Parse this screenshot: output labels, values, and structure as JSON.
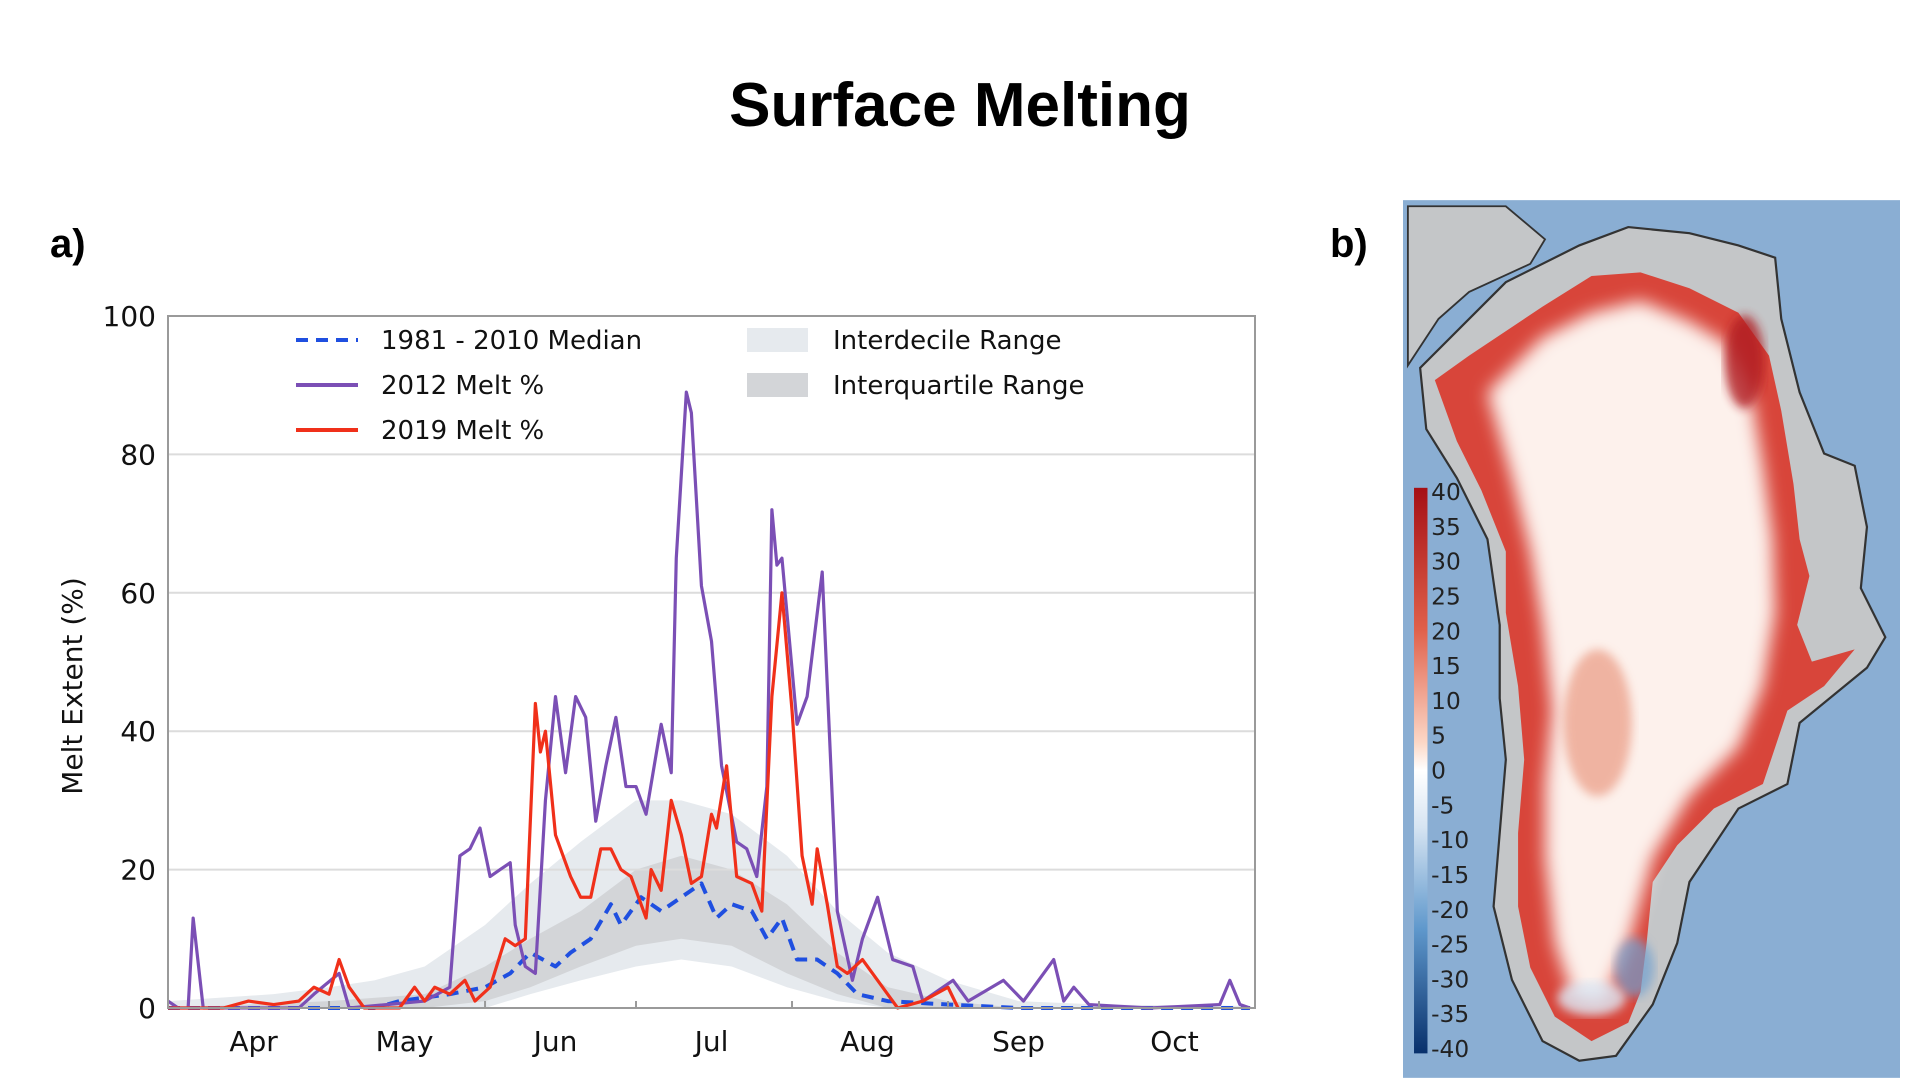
{
  "title": "Surface Melting",
  "panel_a_label": "a)",
  "panel_b_label": "b)",
  "chart_data": {
    "type": "line",
    "title": "",
    "xlabel": "",
    "ylabel": "Melt Extent (%)",
    "ylim": [
      0,
      100
    ],
    "xlim": [
      "03-30",
      "11-01"
    ],
    "yticks": [
      0,
      20,
      40,
      60,
      80,
      100
    ],
    "xtick_labels": [
      "Apr",
      "May",
      "Jun",
      "Jul",
      "Aug",
      "Sep",
      "Oct"
    ],
    "grid": "horizontal",
    "legend_placement": "top-left",
    "series": [
      {
        "name": "1981 - 2010 Median",
        "style": "dashed",
        "color": "#1f4fe0",
        "points": [
          [
            "03-30",
            0
          ],
          [
            "05-10",
            0
          ],
          [
            "05-15",
            1
          ],
          [
            "05-25",
            2
          ],
          [
            "06-01",
            3
          ],
          [
            "06-06",
            5
          ],
          [
            "06-10",
            8
          ],
          [
            "06-15",
            6
          ],
          [
            "06-18",
            8
          ],
          [
            "06-22",
            10
          ],
          [
            "06-26",
            15
          ],
          [
            "06-28",
            12
          ],
          [
            "07-02",
            16
          ],
          [
            "07-06",
            14
          ],
          [
            "07-10",
            16
          ],
          [
            "07-14",
            18
          ],
          [
            "07-17",
            13
          ],
          [
            "07-20",
            15
          ],
          [
            "07-24",
            14
          ],
          [
            "07-27",
            10
          ],
          [
            "07-30",
            13
          ],
          [
            "08-02",
            7
          ],
          [
            "08-06",
            7
          ],
          [
            "08-10",
            5
          ],
          [
            "08-14",
            2
          ],
          [
            "08-20",
            1
          ],
          [
            "09-01",
            0.5
          ],
          [
            "09-15",
            0
          ],
          [
            "10-31",
            0
          ]
        ]
      },
      {
        "name": "2012 Melt %",
        "style": "solid",
        "color": "#7b4fb5",
        "points": [
          [
            "03-30",
            1
          ],
          [
            "04-01",
            0
          ],
          [
            "04-03",
            0
          ],
          [
            "04-04",
            13
          ],
          [
            "04-06",
            0
          ],
          [
            "04-25",
            0
          ],
          [
            "04-28",
            2
          ],
          [
            "05-03",
            5
          ],
          [
            "05-05",
            0
          ],
          [
            "05-20",
            1
          ],
          [
            "05-25",
            3
          ],
          [
            "05-27",
            22
          ],
          [
            "05-29",
            23
          ],
          [
            "05-31",
            26
          ],
          [
            "06-02",
            19
          ],
          [
            "06-04",
            20
          ],
          [
            "06-06",
            21
          ],
          [
            "06-07",
            12
          ],
          [
            "06-09",
            6
          ],
          [
            "06-11",
            5
          ],
          [
            "06-13",
            30
          ],
          [
            "06-15",
            45
          ],
          [
            "06-17",
            34
          ],
          [
            "06-19",
            45
          ],
          [
            "06-21",
            42
          ],
          [
            "06-23",
            27
          ],
          [
            "06-25",
            35
          ],
          [
            "06-27",
            42
          ],
          [
            "06-29",
            32
          ],
          [
            "07-01",
            32
          ],
          [
            "07-03",
            28
          ],
          [
            "07-06",
            41
          ],
          [
            "07-08",
            34
          ],
          [
            "07-09",
            65
          ],
          [
            "07-11",
            89
          ],
          [
            "07-12",
            86
          ],
          [
            "07-14",
            61
          ],
          [
            "07-16",
            53
          ],
          [
            "07-18",
            35
          ],
          [
            "07-21",
            24
          ],
          [
            "07-23",
            23
          ],
          [
            "07-25",
            19
          ],
          [
            "07-27",
            32
          ],
          [
            "07-28",
            72
          ],
          [
            "07-29",
            64
          ],
          [
            "07-30",
            65
          ],
          [
            "08-02",
            41
          ],
          [
            "08-04",
            45
          ],
          [
            "08-07",
            63
          ],
          [
            "08-10",
            14
          ],
          [
            "08-13",
            4
          ],
          [
            "08-15",
            10
          ],
          [
            "08-18",
            16
          ],
          [
            "08-21",
            7
          ],
          [
            "08-25",
            6
          ],
          [
            "08-27",
            1
          ],
          [
            "09-02",
            4
          ],
          [
            "09-05",
            1
          ],
          [
            "09-12",
            4
          ],
          [
            "09-16",
            1
          ],
          [
            "09-22",
            7
          ],
          [
            "09-24",
            1
          ],
          [
            "09-26",
            3
          ],
          [
            "09-29",
            0.5
          ],
          [
            "10-11",
            0
          ],
          [
            "10-25",
            0.5
          ],
          [
            "10-27",
            4
          ],
          [
            "10-29",
            0.5
          ],
          [
            "10-31",
            0
          ]
        ]
      },
      {
        "name": "2019 Melt %",
        "style": "solid",
        "color": "#f0301a",
        "points": [
          [
            "03-30",
            0
          ],
          [
            "04-10",
            0
          ],
          [
            "04-15",
            1
          ],
          [
            "04-20",
            0.5
          ],
          [
            "04-25",
            1
          ],
          [
            "04-28",
            3
          ],
          [
            "05-01",
            2
          ],
          [
            "05-03",
            7
          ],
          [
            "05-05",
            3
          ],
          [
            "05-08",
            0
          ],
          [
            "05-15",
            0
          ],
          [
            "05-18",
            3
          ],
          [
            "05-20",
            1
          ],
          [
            "05-22",
            3
          ],
          [
            "05-25",
            2
          ],
          [
            "05-28",
            4
          ],
          [
            "05-30",
            1
          ],
          [
            "06-02",
            3
          ],
          [
            "06-05",
            10
          ],
          [
            "06-07",
            9
          ],
          [
            "06-09",
            10
          ],
          [
            "06-11",
            44
          ],
          [
            "06-12",
            37
          ],
          [
            "06-13",
            40
          ],
          [
            "06-15",
            25
          ],
          [
            "06-18",
            19
          ],
          [
            "06-20",
            16
          ],
          [
            "06-22",
            16
          ],
          [
            "06-24",
            23
          ],
          [
            "06-26",
            23
          ],
          [
            "06-28",
            20
          ],
          [
            "06-30",
            19
          ],
          [
            "07-03",
            13
          ],
          [
            "07-04",
            20
          ],
          [
            "07-06",
            17
          ],
          [
            "07-08",
            30
          ],
          [
            "07-10",
            25
          ],
          [
            "07-12",
            18
          ],
          [
            "07-14",
            19
          ],
          [
            "07-16",
            28
          ],
          [
            "07-17",
            26
          ],
          [
            "07-19",
            35
          ],
          [
            "07-21",
            19
          ],
          [
            "07-24",
            18
          ],
          [
            "07-26",
            14
          ],
          [
            "07-28",
            45
          ],
          [
            "07-30",
            60
          ],
          [
            "08-01",
            43
          ],
          [
            "08-03",
            22
          ],
          [
            "08-05",
            15
          ],
          [
            "08-06",
            23
          ],
          [
            "08-08",
            15
          ],
          [
            "08-10",
            6
          ],
          [
            "08-12",
            5
          ],
          [
            "08-15",
            7
          ],
          [
            "08-18",
            4
          ],
          [
            "08-22",
            0
          ],
          [
            "08-27",
            1
          ],
          [
            "09-01",
            3
          ],
          [
            "09-03",
            0
          ]
        ]
      }
    ],
    "bands": [
      {
        "name": "Interdecile Range",
        "color": "#e6eaee",
        "points": [
          [
            "03-30",
            0,
            1
          ],
          [
            "04-20",
            0,
            2
          ],
          [
            "05-01",
            0,
            3
          ],
          [
            "05-10",
            0,
            4
          ],
          [
            "05-20",
            0,
            6
          ],
          [
            "06-01",
            0,
            12
          ],
          [
            "06-10",
            2,
            18
          ],
          [
            "06-20",
            4,
            24
          ],
          [
            "07-01",
            6,
            30
          ],
          [
            "07-10",
            7,
            30
          ],
          [
            "07-20",
            6,
            28
          ],
          [
            "07-31",
            3,
            22
          ],
          [
            "08-10",
            1,
            14
          ],
          [
            "08-20",
            0,
            8
          ],
          [
            "09-01",
            0,
            4
          ],
          [
            "09-15",
            0,
            1
          ],
          [
            "10-01",
            0,
            0.5
          ],
          [
            "10-31",
            0,
            0.3
          ]
        ]
      },
      {
        "name": "Interquartile Range",
        "color": "#d3d5d8",
        "points": [
          [
            "03-30",
            0,
            0
          ],
          [
            "05-01",
            0,
            1
          ],
          [
            "05-20",
            0,
            2
          ],
          [
            "06-01",
            1,
            6
          ],
          [
            "06-10",
            3,
            10
          ],
          [
            "06-20",
            6,
            14
          ],
          [
            "07-01",
            9,
            20
          ],
          [
            "07-10",
            10,
            22
          ],
          [
            "07-20",
            9,
            20
          ],
          [
            "07-31",
            5,
            15
          ],
          [
            "08-10",
            2,
            8
          ],
          [
            "08-20",
            0,
            3
          ],
          [
            "09-01",
            0,
            1
          ],
          [
            "09-15",
            0,
            0
          ],
          [
            "10-31",
            0,
            0
          ]
        ]
      }
    ]
  },
  "map": {
    "colorbar_labels": [
      "40",
      "35",
      "30",
      "25",
      "20",
      "15",
      "10",
      "5",
      "0",
      "-5",
      "-10",
      "-15",
      "-20",
      "-25",
      "-30",
      "-35",
      "-40"
    ],
    "colors": {
      "ocean": "#8aaed3",
      "land": "#c4c6c8",
      "high": "#a50f15",
      "zero": "#ffffff",
      "low": "#08306b"
    }
  }
}
